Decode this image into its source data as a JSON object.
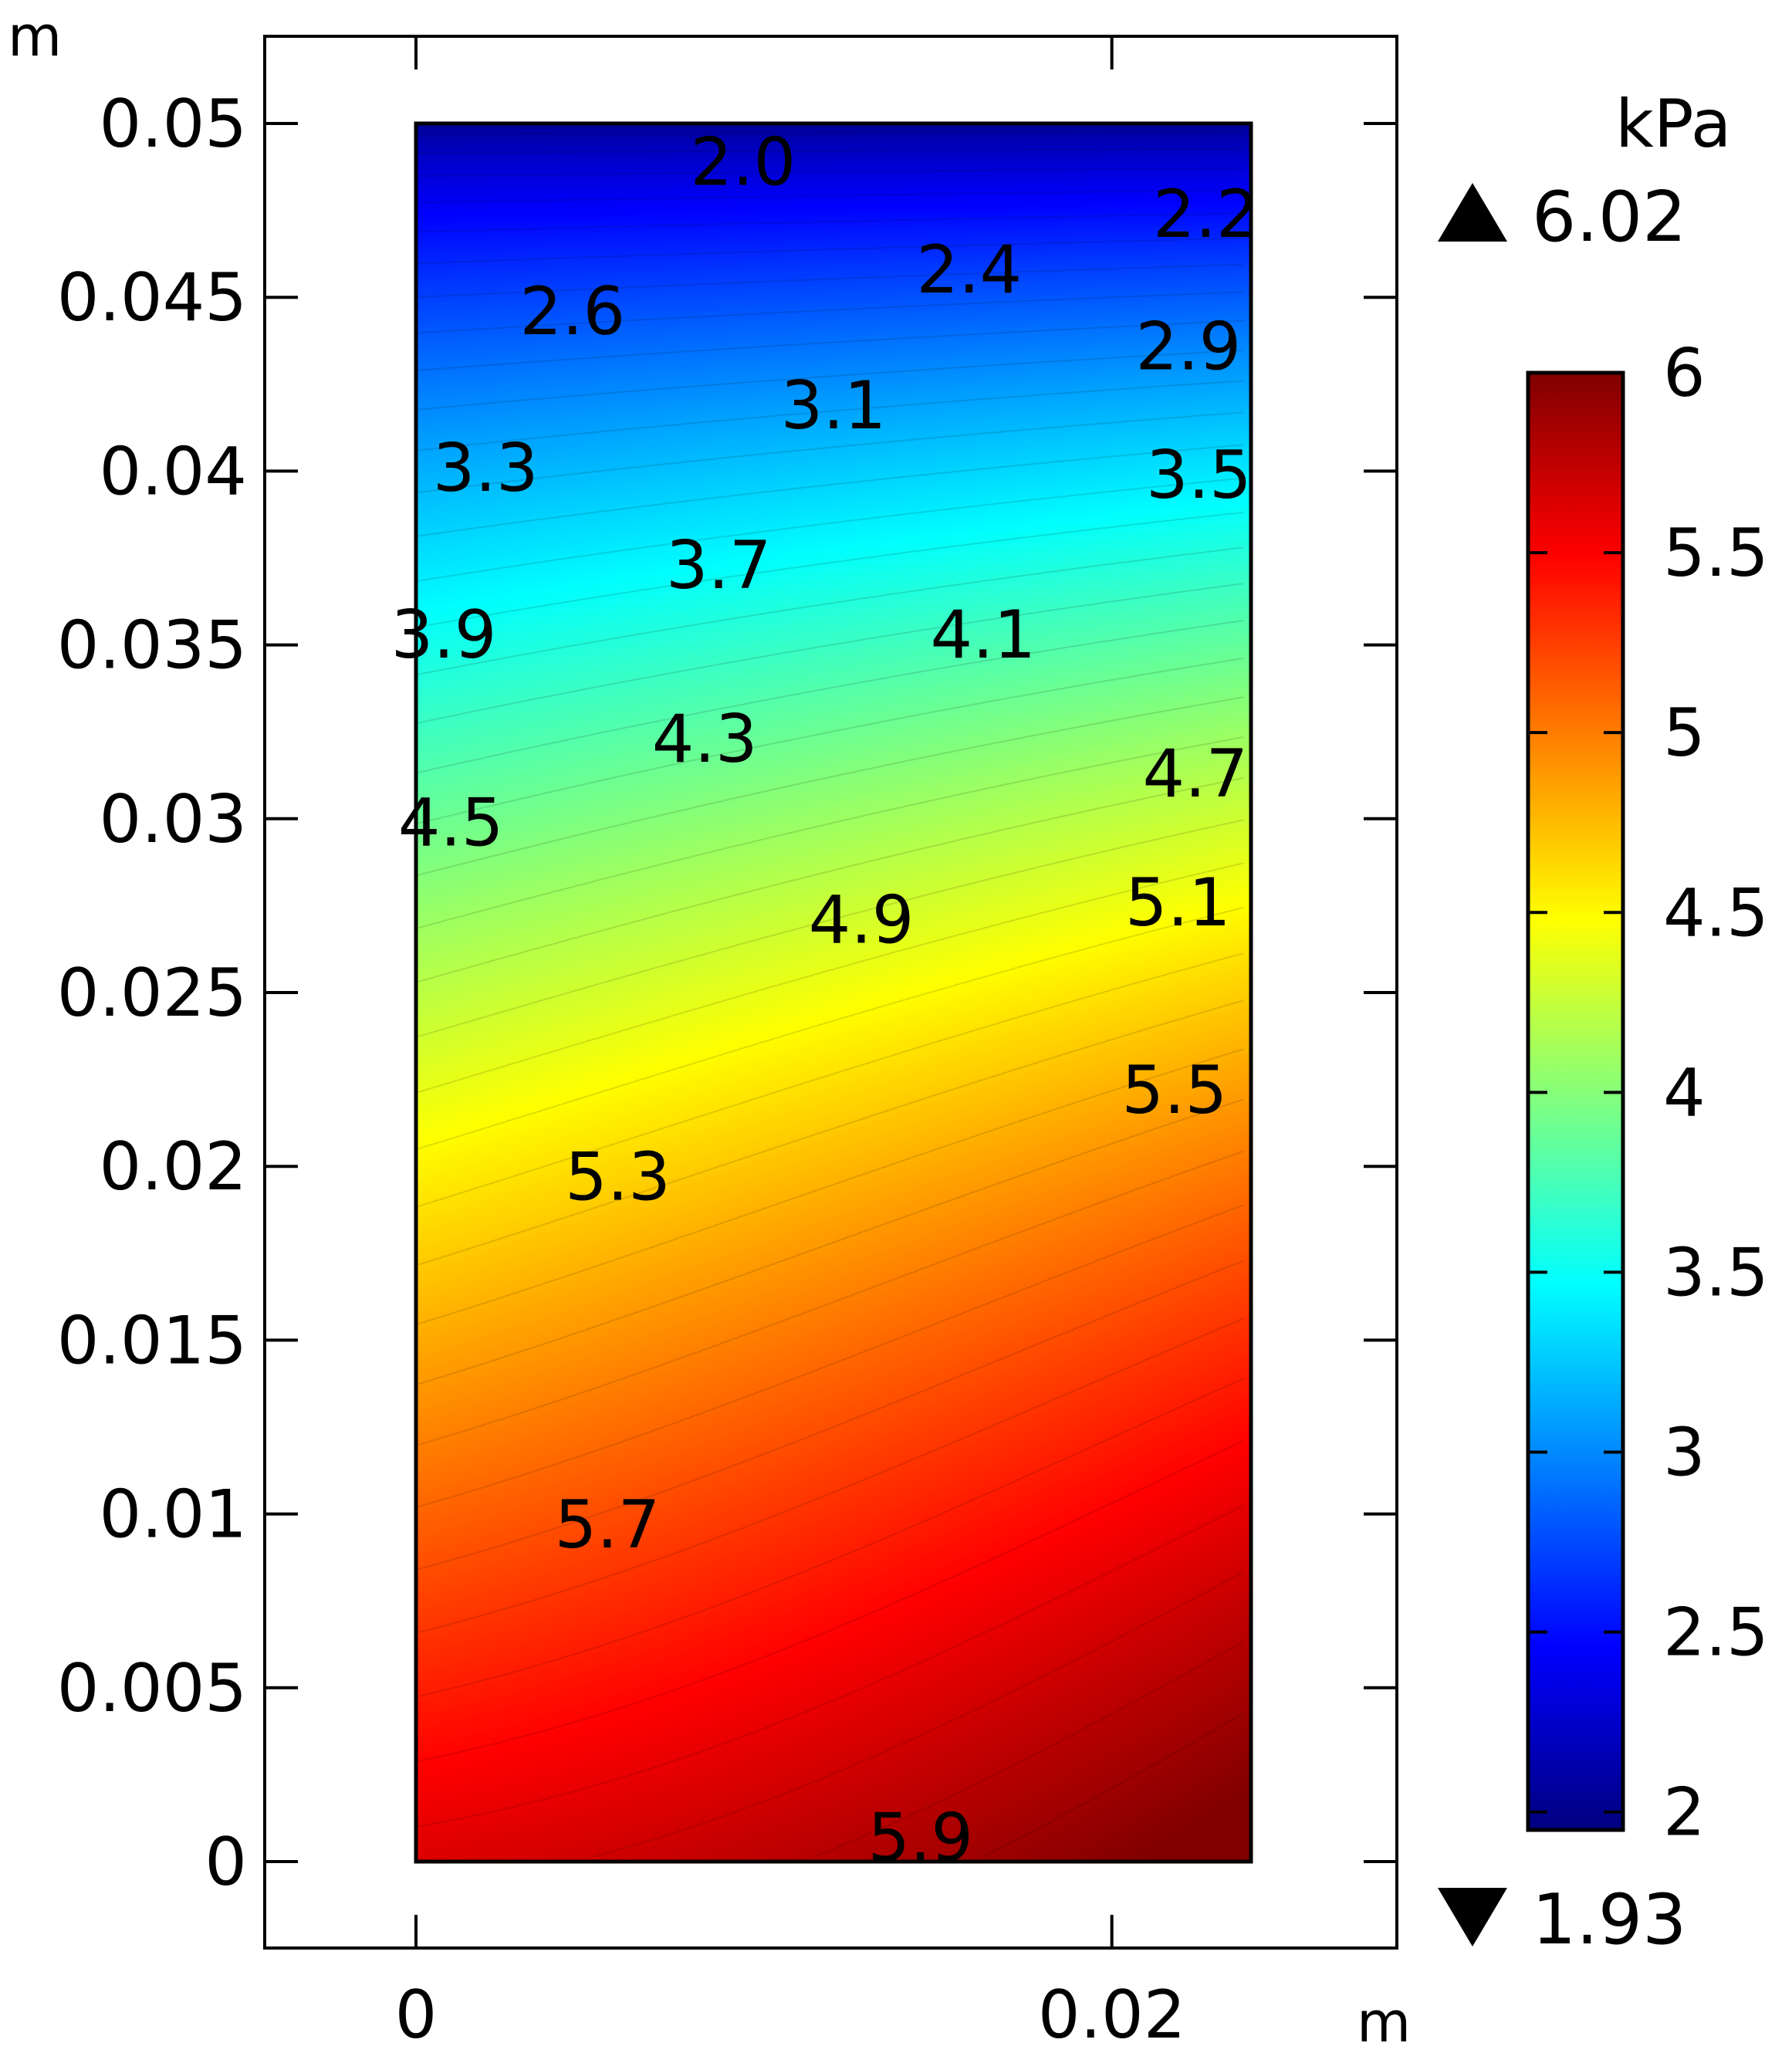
{
  "chart_data": {
    "type": "heatmap",
    "x_unit": "m",
    "y_unit": "m",
    "xlim": [
      -0.0044,
      0.0284
    ],
    "ylim": [
      -0.0049,
      0.0525
    ],
    "domain": {
      "x": [
        0,
        0.024
      ],
      "y": [
        0,
        0.05
      ]
    },
    "x_ticks": [
      {
        "value": 0,
        "label": "0"
      },
      {
        "value": 0.02,
        "label": "0.02"
      }
    ],
    "y_ticks": [
      {
        "value": 0.05,
        "label": "0.05"
      },
      {
        "value": 0.045,
        "label": "0.045"
      },
      {
        "value": 0.04,
        "label": "0.04"
      },
      {
        "value": 0.035,
        "label": "0.035"
      },
      {
        "value": 0.03,
        "label": "0.03"
      },
      {
        "value": 0.025,
        "label": "0.025"
      },
      {
        "value": 0.02,
        "label": "0.02"
      },
      {
        "value": 0.015,
        "label": "0.015"
      },
      {
        "value": 0.01,
        "label": "0.01"
      },
      {
        "value": 0.005,
        "label": "0.005"
      },
      {
        "value": 0,
        "label": "0"
      }
    ],
    "colorbar": {
      "unit": "kPa",
      "max_label": "6.02",
      "min_label": "1.93",
      "range": [
        1.93,
        6.02
      ],
      "colormap": "rainbow (dark blue to dark red)",
      "ticks": [
        {
          "value": 6,
          "label": "6"
        },
        {
          "value": 5.5,
          "label": "5.5"
        },
        {
          "value": 5,
          "label": "5"
        },
        {
          "value": 4.5,
          "label": "4.5"
        },
        {
          "value": 4,
          "label": "4"
        },
        {
          "value": 3.5,
          "label": "3.5"
        },
        {
          "value": 3,
          "label": "3"
        },
        {
          "value": 2.5,
          "label": "2.5"
        },
        {
          "value": 2,
          "label": "2"
        }
      ]
    },
    "contour_labels": [
      {
        "text": "2.0",
        "x": 0.0094,
        "y": 0.0489
      },
      {
        "text": "2.2",
        "x": 0.0227,
        "y": 0.0474
      },
      {
        "text": "2.4",
        "x": 0.0159,
        "y": 0.0458
      },
      {
        "text": "2.6",
        "x": 0.0045,
        "y": 0.0446
      },
      {
        "text": "2.9",
        "x": 0.0222,
        "y": 0.0436
      },
      {
        "text": "3.1",
        "x": 0.012,
        "y": 0.0419
      },
      {
        "text": "3.3",
        "x": 0.002,
        "y": 0.0401
      },
      {
        "text": "3.5",
        "x": 0.0225,
        "y": 0.0399
      },
      {
        "text": "3.7",
        "x": 0.0087,
        "y": 0.0373
      },
      {
        "text": "3.9",
        "x": 0.0008,
        "y": 0.0353
      },
      {
        "text": "4.1",
        "x": 0.0163,
        "y": 0.0353
      },
      {
        "text": "4.3",
        "x": 0.0083,
        "y": 0.0323
      },
      {
        "text": "4.5",
        "x": 0.001,
        "y": 0.0299
      },
      {
        "text": "4.7",
        "x": 0.0224,
        "y": 0.0313
      },
      {
        "text": "4.9",
        "x": 0.0128,
        "y": 0.0271
      },
      {
        "text": "5.1",
        "x": 0.0219,
        "y": 0.0276
      },
      {
        "text": "5.3",
        "x": 0.0058,
        "y": 0.0197
      },
      {
        "text": "5.5",
        "x": 0.0218,
        "y": 0.0222
      },
      {
        "text": "5.7",
        "x": 0.0055,
        "y": 0.0097
      },
      {
        "text": "5.9",
        "x": 0.0145,
        "y": 0.0007
      }
    ],
    "field_model": "pressure increases from about 2.0 kPa at top (y=0.05) to about 6.0 kPa at bottom-right corner"
  }
}
